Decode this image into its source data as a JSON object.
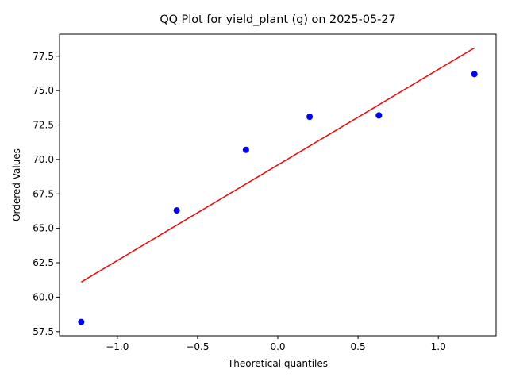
{
  "chart_data": {
    "type": "scatter",
    "title": "QQ Plot for yield_plant (g) on 2025-05-27",
    "xlabel": "Theoretical quantiles",
    "ylabel": "Ordered Values",
    "xlim": [
      -1.36,
      1.36
    ],
    "ylim": [
      57.2,
      79.1
    ],
    "x_ticks": [
      -1.0,
      -0.5,
      0.0,
      0.5,
      1.0
    ],
    "x_tick_labels": [
      "−1.0",
      "−0.5",
      "0.0",
      "0.5",
      "1.0"
    ],
    "y_ticks": [
      57.5,
      60.0,
      62.5,
      65.0,
      67.5,
      70.0,
      72.5,
      75.0,
      77.5
    ],
    "y_tick_labels": [
      "57.5",
      "60.0",
      "62.5",
      "65.0",
      "67.5",
      "70.0",
      "72.5",
      "75.0",
      "77.5"
    ],
    "grid": false,
    "points": {
      "color": "#0000ff",
      "x": [
        -1.2247,
        -0.6297,
        -0.1982,
        0.1982,
        0.6297,
        1.2247
      ],
      "y": [
        58.2,
        66.3,
        70.7,
        73.1,
        73.2,
        76.2
      ]
    },
    "fit_line": {
      "color": "#ff0000",
      "x": [
        -1.2247,
        1.2247
      ],
      "y": [
        61.1,
        78.1
      ]
    }
  }
}
